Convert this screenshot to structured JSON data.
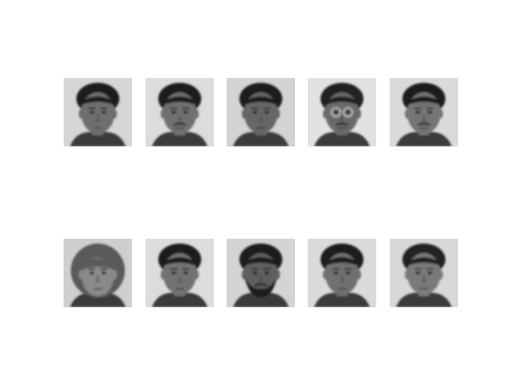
{
  "figure": {
    "grid": {
      "rows": 2,
      "cols": 5
    },
    "faces": [
      {
        "row": 1,
        "col": 1,
        "hair": "short-dark",
        "facial_hair": "none",
        "glasses": false,
        "bg": "#d6d6d6",
        "skin": "#6e6e6e",
        "hair_color": "#1c1c1c"
      },
      {
        "row": 1,
        "col": 2,
        "hair": "short-dark",
        "facial_hair": "mustache",
        "glasses": false,
        "bg": "#dcdcdc",
        "skin": "#707070",
        "hair_color": "#1a1a1a"
      },
      {
        "row": 1,
        "col": 3,
        "hair": "short-dark",
        "facial_hair": "none",
        "glasses": false,
        "bg": "#d3d3d3",
        "skin": "#666666",
        "hair_color": "#1e1e1e"
      },
      {
        "row": 1,
        "col": 4,
        "hair": "short-dark",
        "facial_hair": "mustache",
        "glasses": true,
        "bg": "#e2e2e2",
        "skin": "#6a6a6a",
        "hair_color": "#202020"
      },
      {
        "row": 1,
        "col": 5,
        "hair": "short-dark",
        "facial_hair": "mustache",
        "glasses": false,
        "bg": "#dadada",
        "skin": "#747474",
        "hair_color": "#1c1c1c"
      },
      {
        "row": 2,
        "col": 1,
        "hair": "bob-light",
        "facial_hair": "none",
        "glasses": false,
        "bg": "#cfcfcf",
        "skin": "#8a8a8a",
        "hair_color": "#5a5a5a"
      },
      {
        "row": 2,
        "col": 2,
        "hair": "short-dark",
        "facial_hair": "none",
        "glasses": false,
        "bg": "#dcdcdc",
        "skin": "#727272",
        "hair_color": "#1a1a1a"
      },
      {
        "row": 2,
        "col": 3,
        "hair": "short-dark",
        "facial_hair": "beard",
        "glasses": false,
        "bg": "#d4d4d4",
        "skin": "#5e5e5e",
        "hair_color": "#1a1a1a"
      },
      {
        "row": 2,
        "col": 4,
        "hair": "short-dark",
        "facial_hair": "none",
        "glasses": false,
        "bg": "#dadada",
        "skin": "#707070",
        "hair_color": "#1c1c1c"
      },
      {
        "row": 2,
        "col": 5,
        "hair": "short-dark",
        "facial_hair": "none",
        "glasses": false,
        "bg": "#d8d8d8",
        "skin": "#7a7a7a",
        "hair_color": "#222222"
      }
    ]
  }
}
